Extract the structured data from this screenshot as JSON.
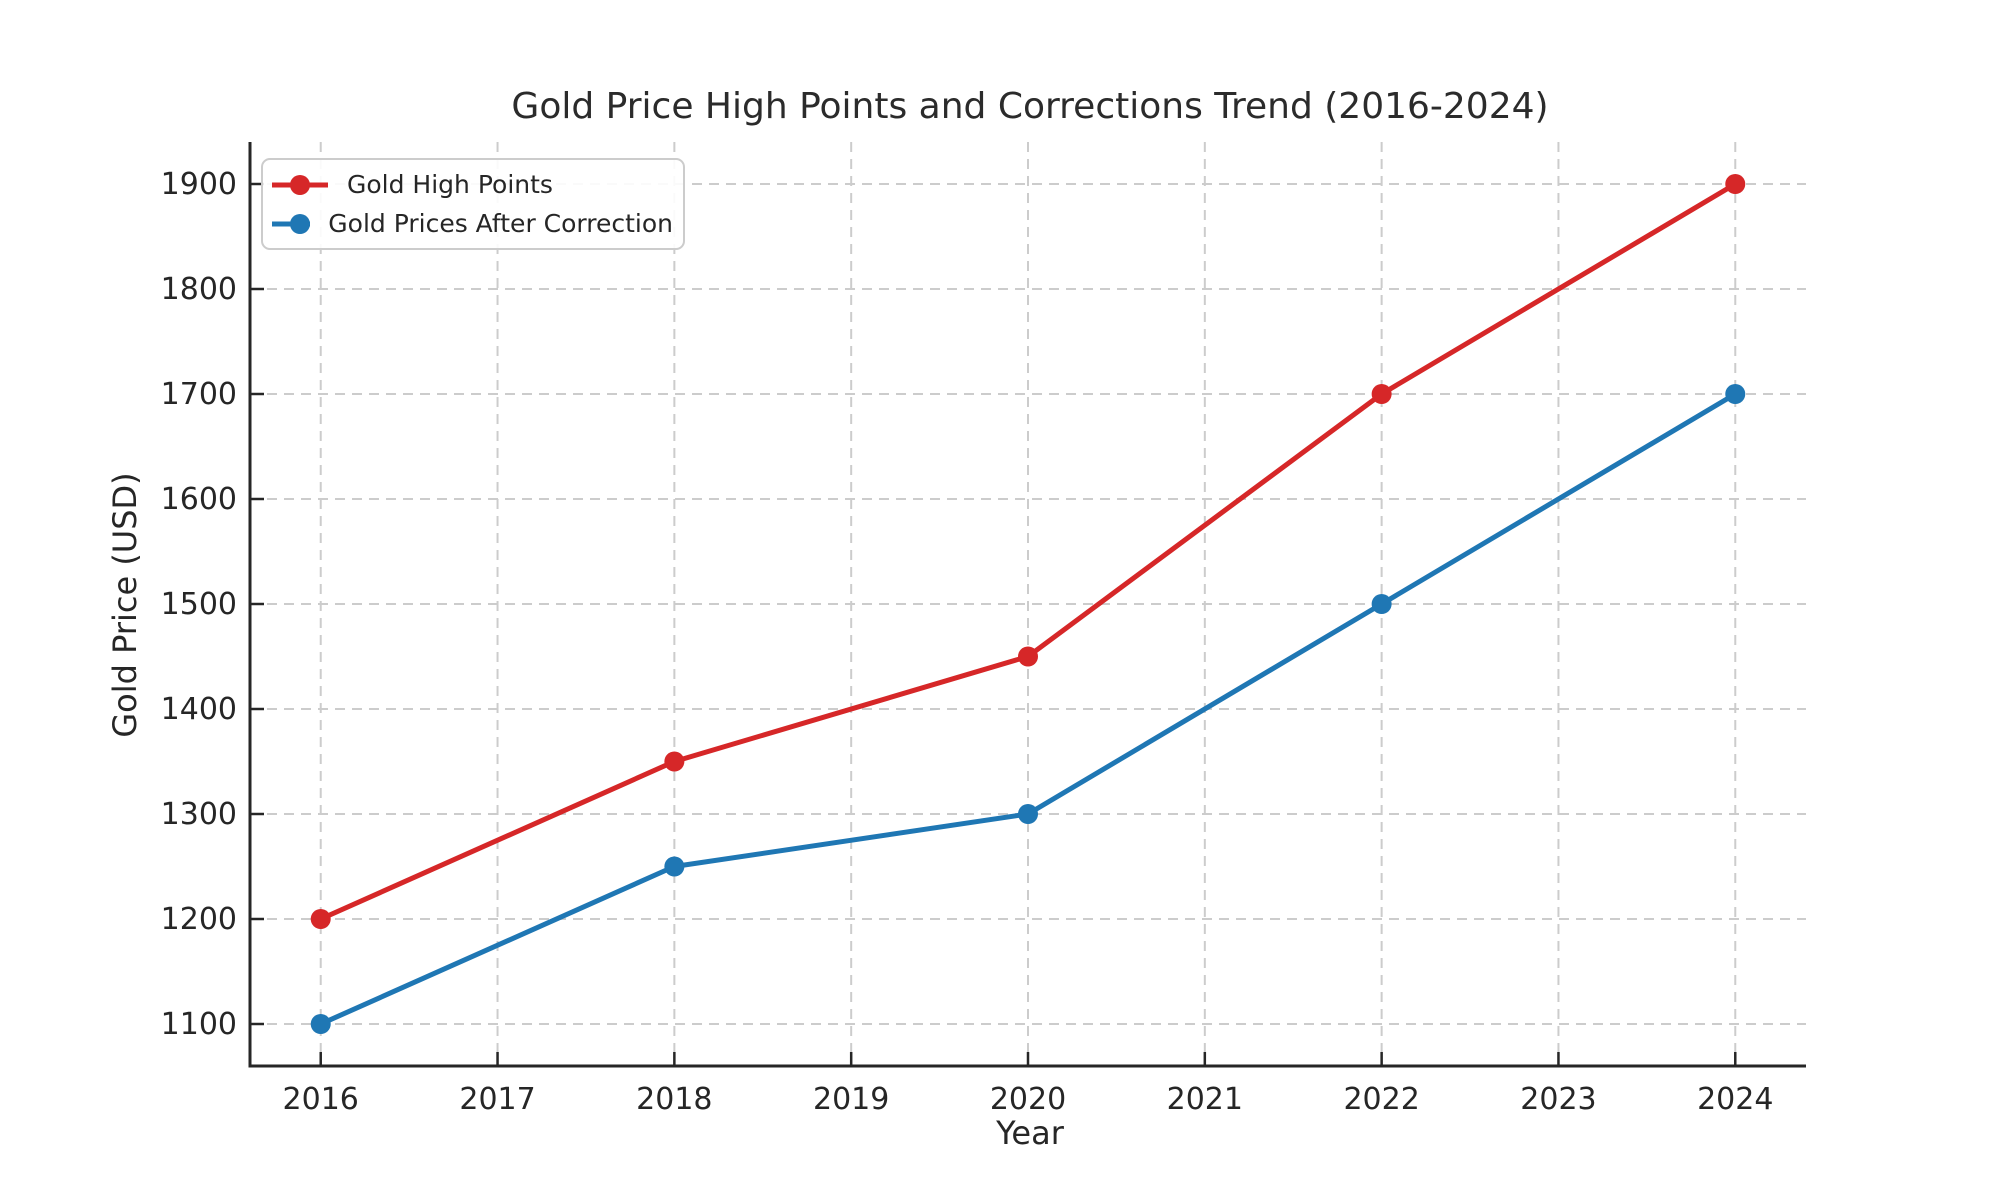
{
  "chart_data": {
    "type": "line",
    "title": "Gold Price High Points and Corrections Trend (2016-2024)",
    "xlabel": "Year",
    "ylabel": "Gold Price (USD)",
    "x": [
      2016,
      2018,
      2020,
      2022,
      2024
    ],
    "series": [
      {
        "name": "Gold High Points",
        "color": "#d62728",
        "values": [
          1200,
          1350,
          1450,
          1700,
          1900
        ]
      },
      {
        "name": "Gold Prices After Correction",
        "color": "#1f77b4",
        "values": [
          1100,
          1250,
          1300,
          1500,
          1700
        ]
      }
    ],
    "x_ticks": [
      2016,
      2017,
      2018,
      2019,
      2020,
      2021,
      2022,
      2023,
      2024
    ],
    "y_ticks": [
      1100,
      1200,
      1300,
      1400,
      1500,
      1600,
      1700,
      1800,
      1900
    ],
    "xlim": [
      2015.6,
      2024.4
    ],
    "ylim": [
      1060,
      1940
    ],
    "grid": true,
    "grid_style": "dashed",
    "grid_color": "#cccccc",
    "axis_color": "#262626",
    "text_color": "#262626",
    "legend_position": "upper left",
    "marker": "circle",
    "line_width": 5,
    "marker_radius": 10
  }
}
